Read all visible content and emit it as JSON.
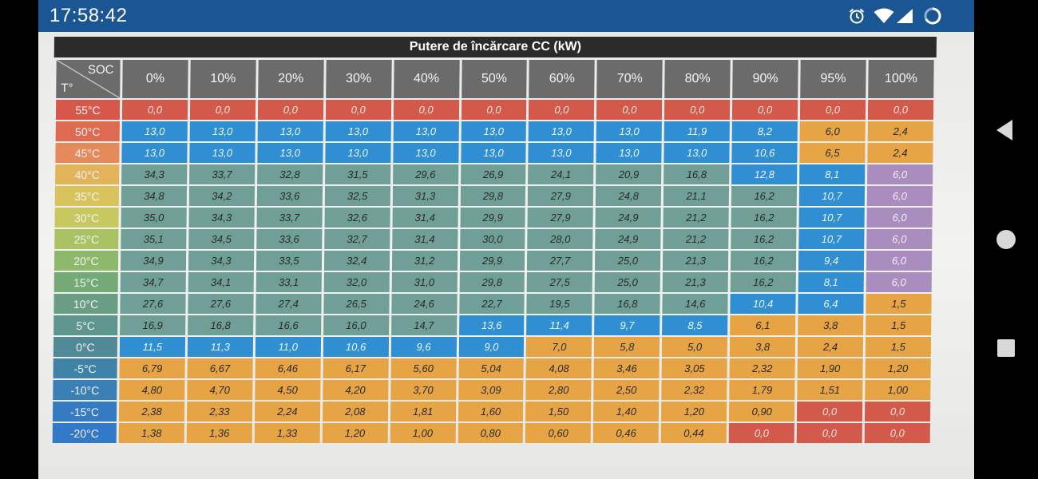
{
  "status_bar": {
    "time": "17:58:42",
    "icons": [
      "alarm-icon",
      "wifi-icon",
      "cellular-signal-icon",
      "loading-icon"
    ]
  },
  "nav_bar": {
    "icons": [
      "back-icon",
      "home-icon",
      "recents-icon"
    ]
  },
  "table": {
    "title": "Putere de încărcare CC (kW)",
    "corner_soc": "SOC",
    "corner_t": "T°",
    "columns": [
      "0%",
      "10%",
      "20%",
      "30%",
      "40%",
      "50%",
      "60%",
      "70%",
      "80%",
      "90%",
      "95%",
      "100%"
    ],
    "rows": [
      {
        "temp": "55°C",
        "values": [
          "0,0",
          "0,0",
          "0,0",
          "0,0",
          "0,0",
          "0,0",
          "0,0",
          "0,0",
          "0,0",
          "0,0",
          "0,0",
          "0,0"
        ]
      },
      {
        "temp": "50°C",
        "values": [
          "13,0",
          "13,0",
          "13,0",
          "13,0",
          "13,0",
          "13,0",
          "13,0",
          "13,0",
          "11,9",
          "8,2",
          "6,0",
          "2,4"
        ]
      },
      {
        "temp": "45°C",
        "values": [
          "13,0",
          "13,0",
          "13,0",
          "13,0",
          "13,0",
          "13,0",
          "13,0",
          "13,0",
          "13,0",
          "10,6",
          "6,5",
          "2,4"
        ]
      },
      {
        "temp": "40°C",
        "values": [
          "34,3",
          "33,7",
          "32,8",
          "31,5",
          "29,6",
          "26,9",
          "24,1",
          "20,9",
          "16,8",
          "12,8",
          "8,1",
          "6,0"
        ]
      },
      {
        "temp": "35°C",
        "values": [
          "34,8",
          "34,2",
          "33,6",
          "32,5",
          "31,3",
          "29,8",
          "27,9",
          "24,8",
          "21,1",
          "16,2",
          "10,7",
          "6,0"
        ]
      },
      {
        "temp": "30°C",
        "values": [
          "35,0",
          "34,3",
          "33,7",
          "32,6",
          "31,4",
          "29,9",
          "27,9",
          "24,9",
          "21,2",
          "16,2",
          "10,7",
          "6,0"
        ]
      },
      {
        "temp": "25°C",
        "values": [
          "35,1",
          "34,5",
          "33,6",
          "32,7",
          "31,4",
          "30,0",
          "28,0",
          "24,9",
          "21,2",
          "16,2",
          "10,7",
          "6,0"
        ]
      },
      {
        "temp": "20°C",
        "values": [
          "34,9",
          "34,3",
          "33,5",
          "32,4",
          "31,2",
          "29,9",
          "27,7",
          "25,0",
          "21,3",
          "16,2",
          "9,4",
          "6,0"
        ]
      },
      {
        "temp": "15°C",
        "values": [
          "34,7",
          "34,1",
          "33,1",
          "32,0",
          "31,0",
          "29,8",
          "27,5",
          "25,0",
          "21,3",
          "16,2",
          "8,1",
          "6,0"
        ]
      },
      {
        "temp": "10°C",
        "values": [
          "27,6",
          "27,6",
          "27,4",
          "26,5",
          "24,6",
          "22,7",
          "19,5",
          "16,8",
          "14,6",
          "10,4",
          "6,4",
          "1,5"
        ]
      },
      {
        "temp": "5°C",
        "values": [
          "16,9",
          "16,8",
          "16,6",
          "16,0",
          "14,7",
          "13,6",
          "11,4",
          "9,7",
          "8,5",
          "6,1",
          "3,8",
          "1,5"
        ]
      },
      {
        "temp": "0°C",
        "values": [
          "11,5",
          "11,3",
          "11,0",
          "10,6",
          "9,6",
          "9,0",
          "7,0",
          "5,8",
          "5,0",
          "3,8",
          "2,4",
          "1,5"
        ]
      },
      {
        "temp": "-5°C",
        "values": [
          "6,79",
          "6,67",
          "6,46",
          "6,17",
          "5,60",
          "5,04",
          "4,08",
          "3,46",
          "3,05",
          "2,32",
          "1,90",
          "1,20"
        ]
      },
      {
        "temp": "-10°C",
        "values": [
          "4,80",
          "4,70",
          "4,50",
          "4,20",
          "3,70",
          "3,09",
          "2,80",
          "2,50",
          "2,32",
          "1,79",
          "1,51",
          "1,00"
        ]
      },
      {
        "temp": "-15°C",
        "values": [
          "2,38",
          "2,33",
          "2,24",
          "2,08",
          "1,81",
          "1,60",
          "1,50",
          "1,40",
          "1,20",
          "0,90",
          "0,0",
          "0,0"
        ]
      },
      {
        "temp": "-20°C",
        "values": [
          "1,38",
          "1,36",
          "1,33",
          "1,20",
          "1,00",
          "0,80",
          "0,60",
          "0,46",
          "0,44",
          "0,0",
          "0,0",
          "0,0"
        ]
      }
    ],
    "row_label_colors": [
      "#d5584a",
      "#de6a52",
      "#e58a5b",
      "#e3b35a",
      "#d8c35c",
      "#c7c85f",
      "#a9c264",
      "#8eb96a",
      "#74aa76",
      "#6a9e84",
      "#5f958f",
      "#4f8a96",
      "#3f82a8",
      "#3a7fb6",
      "#357bc2",
      "#3279c8"
    ],
    "cell_colors": {
      "red": "#d3594b",
      "blue": "#2f8fd2",
      "teal": "#6f9f96",
      "orange": "#e7a445",
      "purple": "#a88dbe"
    }
  }
}
